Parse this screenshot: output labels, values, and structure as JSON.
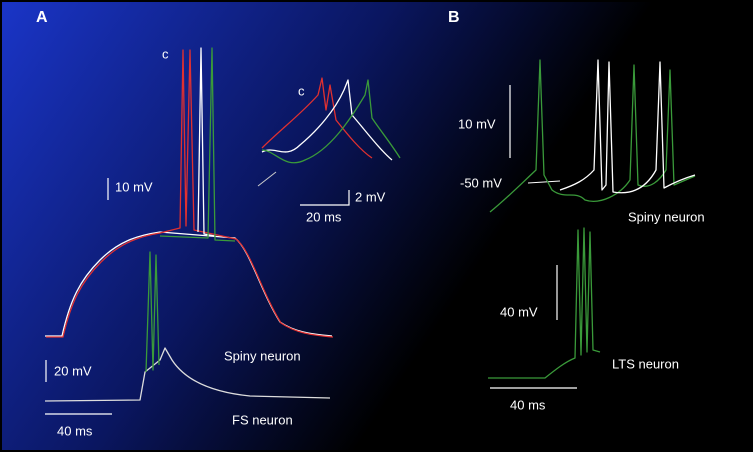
{
  "panel_a": {
    "label": "A",
    "trace_label": "c",
    "inset_trace_label": "c",
    "scale_mv": "10 mV",
    "inset_scale_mv": "2 mV",
    "inset_scale_ms": "20 ms",
    "spiny_label": "Spiny neuron",
    "fs_scale_mv": "20 mV",
    "scale_ms": "40 ms",
    "fs_label": "FS neuron"
  },
  "panel_b": {
    "label": "B",
    "scale_mv": "10 mV",
    "potential_label": "-50 mV",
    "spiny_label": "Spiny neuron",
    "lts_scale_mv": "40 mV",
    "lts_label": "LTS neuron",
    "scale_ms": "40 ms"
  }
}
